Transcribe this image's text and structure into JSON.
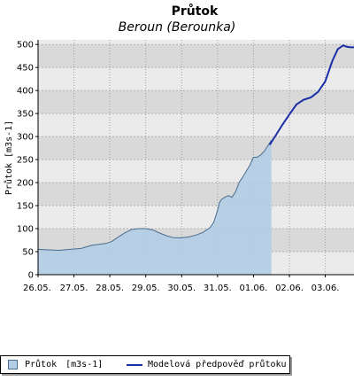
{
  "chart_data": {
    "type": "area",
    "title": "Průtok",
    "subtitle": "Beroun (Berounka)",
    "ylabel": "Průtok [m3s-1]",
    "xlabel": "",
    "ylim": [
      0,
      510
    ],
    "yticks": [
      0,
      50,
      100,
      150,
      200,
      250,
      300,
      350,
      400,
      450,
      500
    ],
    "xlim": [
      0,
      8.8
    ],
    "xticks": [
      {
        "x": 0,
        "label": "26.05."
      },
      {
        "x": 1,
        "label": "27.05."
      },
      {
        "x": 2,
        "label": "28.05."
      },
      {
        "x": 3,
        "label": "29.05."
      },
      {
        "x": 4,
        "label": "30.05."
      },
      {
        "x": 5,
        "label": "31.05."
      },
      {
        "x": 6,
        "label": "01.06."
      },
      {
        "x": 7,
        "label": "02.06."
      },
      {
        "x": 8,
        "label": "03.06."
      }
    ],
    "grid": true,
    "legend_position": "bottom",
    "series": [
      {
        "name": "Průtok",
        "unit": "[m3s-1]",
        "kind": "area",
        "color": "#b3cde6",
        "stroke": "#4a6d8c",
        "x": [
          0,
          0.3,
          0.6,
          0.9,
          1.2,
          1.5,
          1.7,
          1.9,
          2.05,
          2.2,
          2.4,
          2.6,
          2.8,
          3.0,
          3.2,
          3.4,
          3.6,
          3.8,
          4.0,
          4.2,
          4.4,
          4.6,
          4.8,
          4.9,
          5.0,
          5.05,
          5.1,
          5.2,
          5.3,
          5.4,
          5.5,
          5.6,
          5.7,
          5.8,
          5.9,
          6.0,
          6.1,
          6.2,
          6.3,
          6.4,
          6.5
        ],
        "y": [
          55,
          54,
          53,
          55,
          57,
          64,
          66,
          68,
          72,
          80,
          90,
          98,
          100,
          100,
          97,
          90,
          84,
          80,
          80,
          82,
          86,
          92,
          103,
          115,
          140,
          155,
          163,
          168,
          172,
          168,
          180,
          200,
          212,
          225,
          238,
          255,
          255,
          260,
          268,
          280,
          292
        ]
      },
      {
        "name": "Modelová předpověď průtoku",
        "kind": "line",
        "color": "#1a2ea8",
        "x": [
          6.45,
          6.6,
          6.8,
          7.0,
          7.2,
          7.4,
          7.6,
          7.8,
          8.0,
          8.2,
          8.35,
          8.5,
          8.6,
          8.7,
          8.8
        ],
        "y": [
          282,
          300,
          325,
          348,
          370,
          380,
          385,
          397,
          420,
          465,
          490,
          498,
          495,
          494,
          494
        ]
      }
    ]
  }
}
